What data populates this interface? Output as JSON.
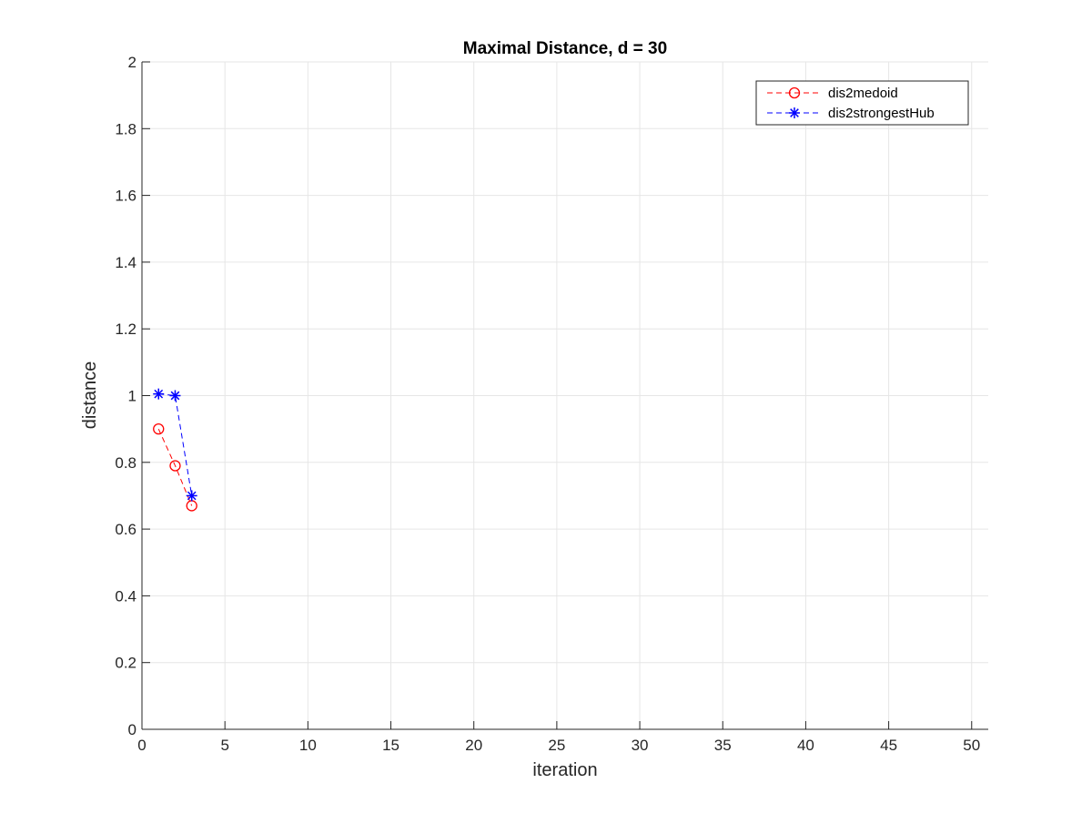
{
  "chart_data": {
    "type": "line",
    "title": "Maximal Distance, d = 30",
    "xlabel": "iteration",
    "ylabel": "distance",
    "xlim": [
      0,
      51
    ],
    "ylim": [
      0,
      2
    ],
    "xticks": [
      0,
      5,
      10,
      15,
      20,
      25,
      30,
      35,
      40,
      45,
      50
    ],
    "yticks": [
      0,
      0.2,
      0.4,
      0.6,
      0.8,
      1,
      1.2,
      1.4,
      1.6,
      1.8,
      2
    ],
    "xtick_labels": [
      "0",
      "5",
      "10",
      "15",
      "20",
      "25",
      "30",
      "35",
      "40",
      "45",
      "50"
    ],
    "ytick_labels": [
      "0",
      "0.2",
      "0.4",
      "0.6",
      "0.8",
      "1",
      "1.2",
      "1.4",
      "1.6",
      "1.8",
      "2"
    ],
    "grid": true,
    "legend_position": "top-right",
    "series": [
      {
        "name": "dis2medoid",
        "color": "#ff0000",
        "marker": "circle",
        "line_style": "dashed",
        "x": [
          1,
          2,
          3
        ],
        "y": [
          0.9,
          0.79,
          0.67
        ]
      },
      {
        "name": "dis2strongestHub",
        "color": "#0000ff",
        "marker": "asterisk",
        "line_style": "dashed",
        "x": [
          1,
          2,
          3
        ],
        "y": [
          1.005,
          1.0,
          0.7
        ]
      }
    ]
  }
}
